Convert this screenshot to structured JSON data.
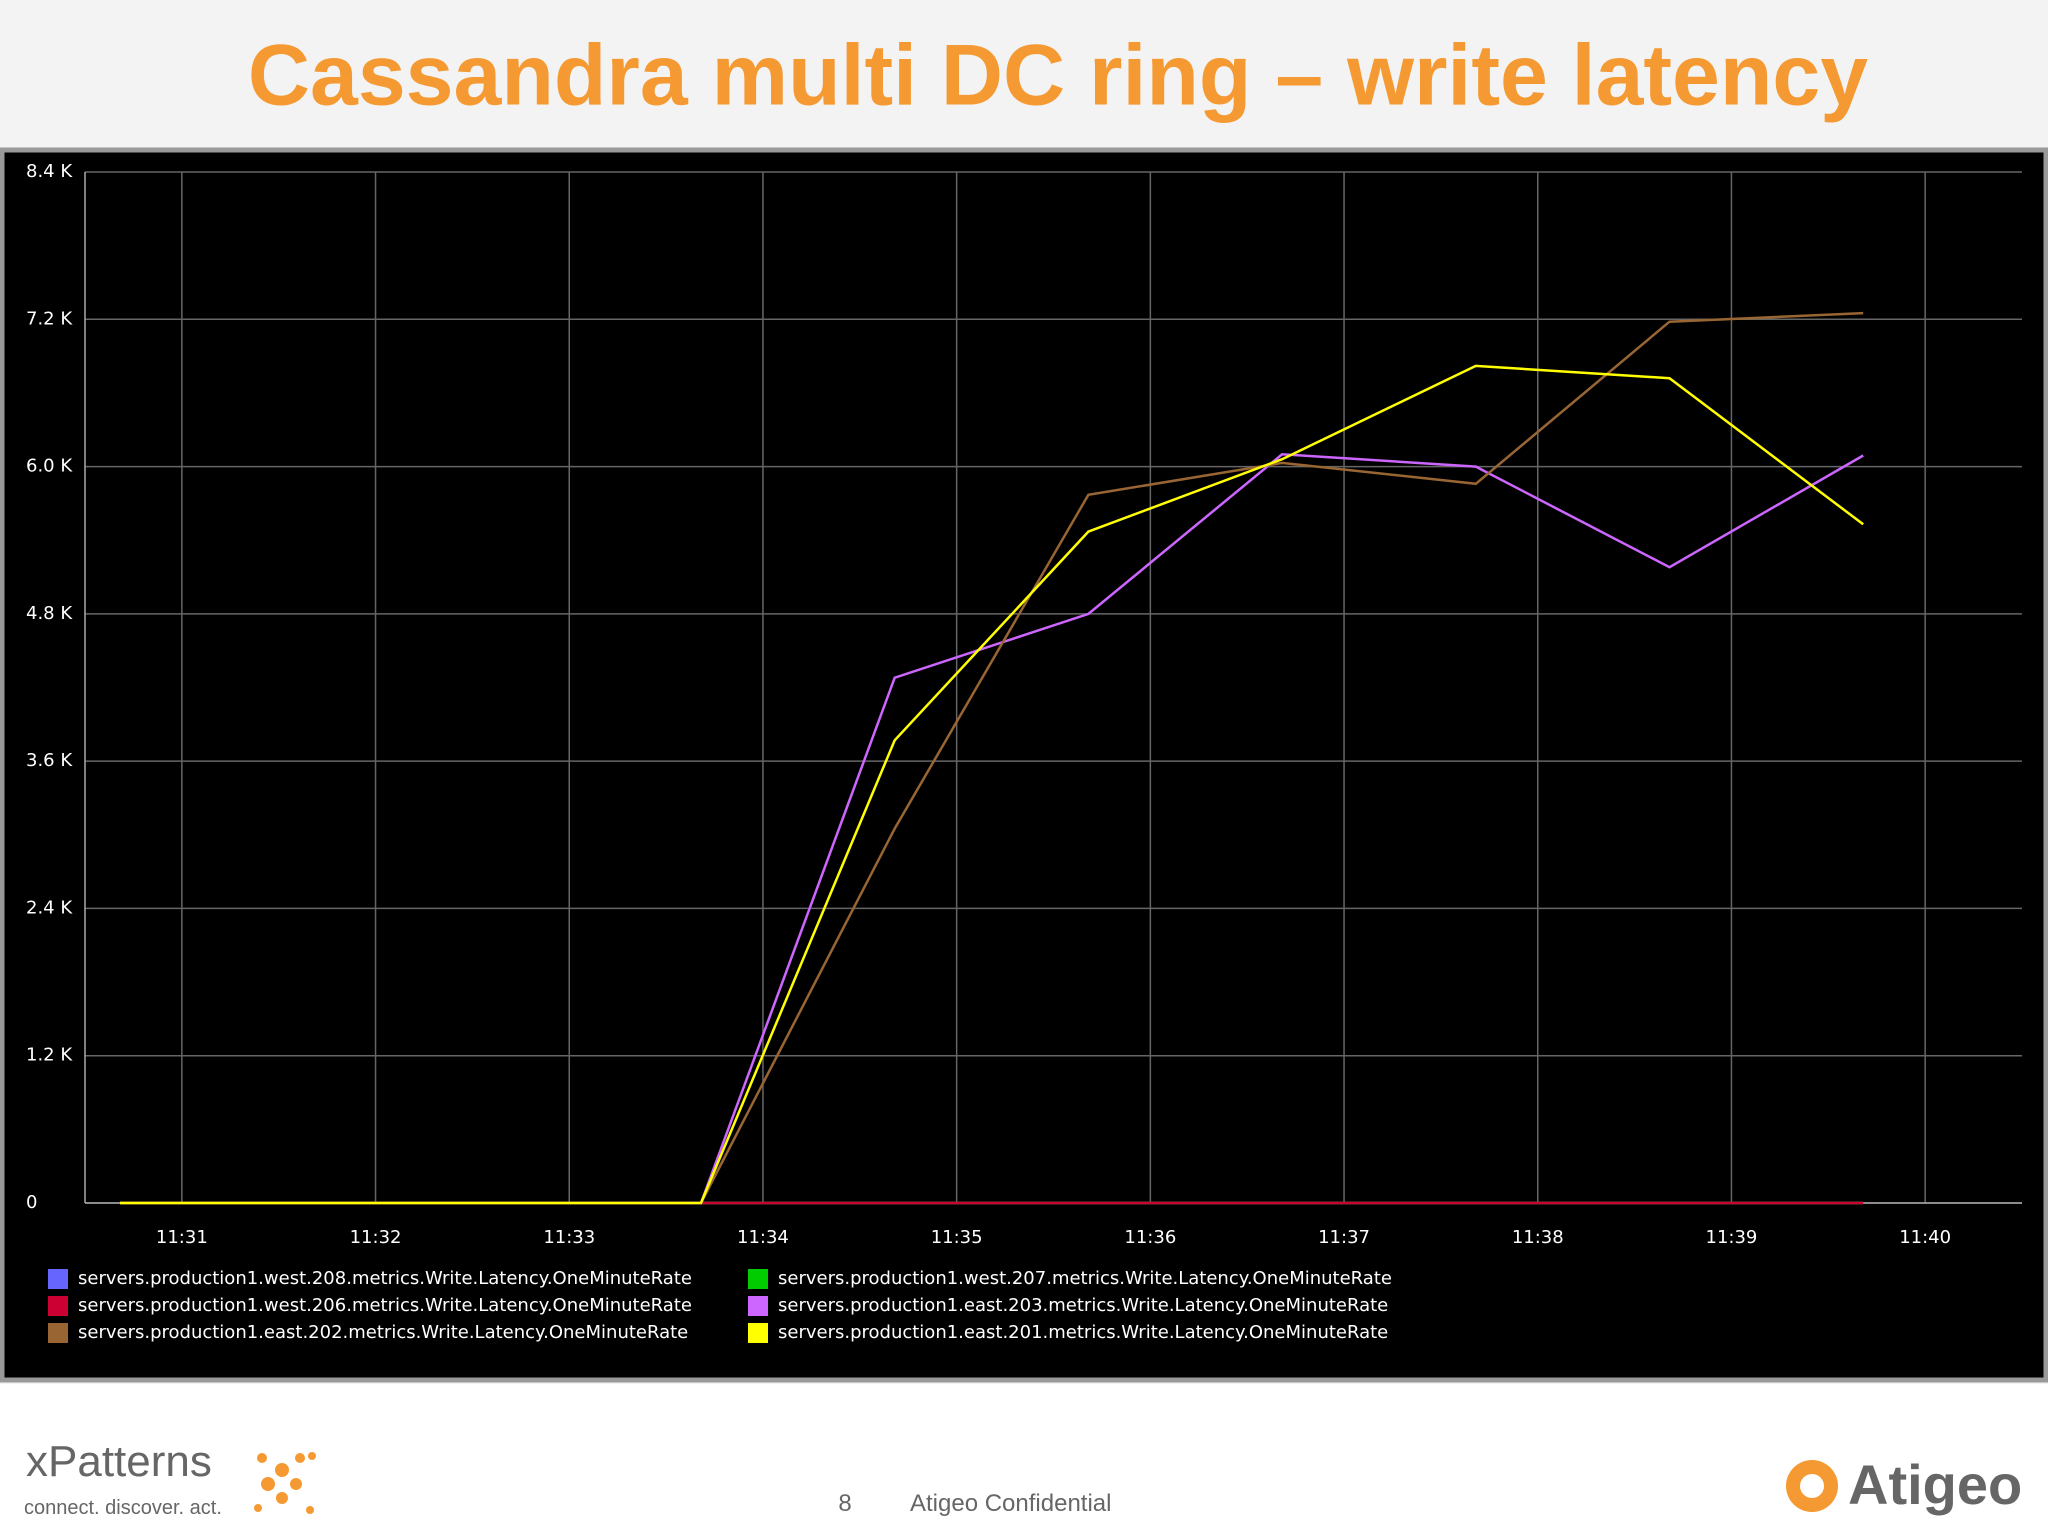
{
  "title": "Cassandra multi DC ring –  write latency",
  "chart_data": {
    "type": "line",
    "x": [
      690.68,
      691.68,
      692.68,
      693.68,
      694.68,
      695.68,
      696.68,
      697.68,
      698.68,
      699.68
    ],
    "xlim": [
      690.5,
      700.5
    ],
    "xticks": [
      {
        "value": 691,
        "label": "11:31"
      },
      {
        "value": 692,
        "label": "11:32"
      },
      {
        "value": 693,
        "label": "11:33"
      },
      {
        "value": 694,
        "label": "11:34"
      },
      {
        "value": 695,
        "label": "11:35"
      },
      {
        "value": 696,
        "label": "11:36"
      },
      {
        "value": 697,
        "label": "11:37"
      },
      {
        "value": 698,
        "label": "11:38"
      },
      {
        "value": 699,
        "label": "11:39"
      },
      {
        "value": 700,
        "label": "11:40"
      }
    ],
    "ylim": [
      0,
      8400
    ],
    "yticks": [
      0,
      {
        "value": 1200,
        "label": "1.2 K"
      },
      {
        "value": 2400,
        "label": "2.4 K"
      },
      {
        "value": 3600,
        "label": "3.6 K"
      },
      {
        "value": 4800,
        "label": "4.8 K"
      },
      {
        "value": 6000,
        "label": "6.0 K"
      },
      {
        "value": 7200,
        "label": "7.2 K"
      },
      {
        "value": 8400,
        "label": "8.4 K"
      }
    ],
    "grid": true,
    "series": [
      {
        "name": "servers.production1.west.208.metrics.Write.Latency.OneMinuteRate",
        "color": "#6666ff",
        "values": [
          0,
          0,
          0,
          0,
          0,
          0,
          0,
          0,
          0,
          0
        ]
      },
      {
        "name": "servers.production1.west.207.metrics.Write.Latency.OneMinuteRate",
        "color": "#00cc00",
        "values": [
          0,
          0,
          0,
          0,
          0,
          0,
          0,
          0,
          0,
          0
        ]
      },
      {
        "name": "servers.production1.west.206.metrics.Write.Latency.OneMinuteRate",
        "color": "#cc0033",
        "values": [
          0,
          0,
          0,
          0,
          0,
          0,
          0,
          0,
          0,
          0
        ]
      },
      {
        "name": "servers.production1.east.203.metrics.Write.Latency.OneMinuteRate",
        "color": "#cc66ff",
        "values": [
          0,
          0,
          0,
          0,
          4280,
          4800,
          6100,
          6000,
          5180,
          6090
        ]
      },
      {
        "name": "servers.production1.east.202.metrics.Write.Latency.OneMinuteRate",
        "color": "#996633",
        "values": [
          0,
          0,
          0,
          0,
          3050,
          5770,
          6030,
          5860,
          7180,
          7250
        ]
      },
      {
        "name": "servers.production1.east.201.metrics.Write.Latency.OneMinuteRate",
        "color": "#ffff00",
        "values": [
          0,
          0,
          0,
          0,
          3770,
          5470,
          6060,
          6820,
          6720,
          5530
        ]
      }
    ]
  },
  "footer": {
    "brand": "xPatterns",
    "tagline": "connect. discover. act.",
    "page": "8",
    "confidential": "Atigeo Confidential",
    "company": "Atigeo"
  }
}
